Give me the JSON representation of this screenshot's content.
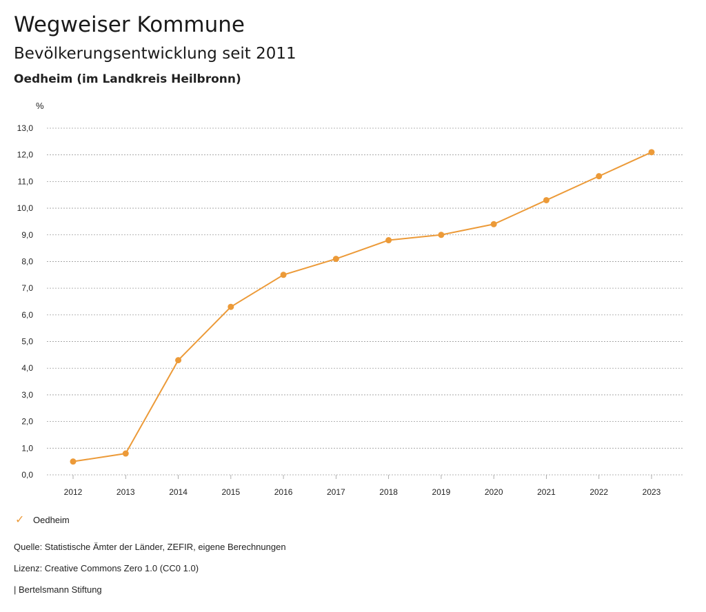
{
  "header": {
    "title": "Wegweiser Kommune",
    "subtitle": "Bevölkerungsentwicklung seit 2011",
    "region": "Oedheim (im Landkreis Heilbronn)"
  },
  "chart_data": {
    "type": "line",
    "ylabel": "%",
    "xlabel": "",
    "ylim": [
      0,
      13
    ],
    "yticks": [
      "0,0",
      "1,0",
      "2,0",
      "3,0",
      "4,0",
      "5,0",
      "6,0",
      "7,0",
      "8,0",
      "9,0",
      "10,0",
      "11,0",
      "12,0",
      "13,0"
    ],
    "x": [
      "2012",
      "2013",
      "2014",
      "2015",
      "2016",
      "2017",
      "2018",
      "2019",
      "2020",
      "2021",
      "2022",
      "2023"
    ],
    "series": [
      {
        "name": "Oedheim",
        "values": [
          0.5,
          0.8,
          4.3,
          6.3,
          7.5,
          8.1,
          8.8,
          9.0,
          9.4,
          10.3,
          11.2,
          12.1
        ]
      }
    ],
    "grid": true,
    "legend_position": "bottom-left",
    "line_color": "#ec9a38"
  },
  "legend": {
    "label": "Oedheim"
  },
  "footer": {
    "source": "Quelle: Statistische Ämter der Länder, ZEFIR, eigene Berechnungen",
    "license": "Lizenz: Creative Commons Zero 1.0 (CC0 1.0)",
    "brand": "| Bertelsmann Stiftung"
  }
}
